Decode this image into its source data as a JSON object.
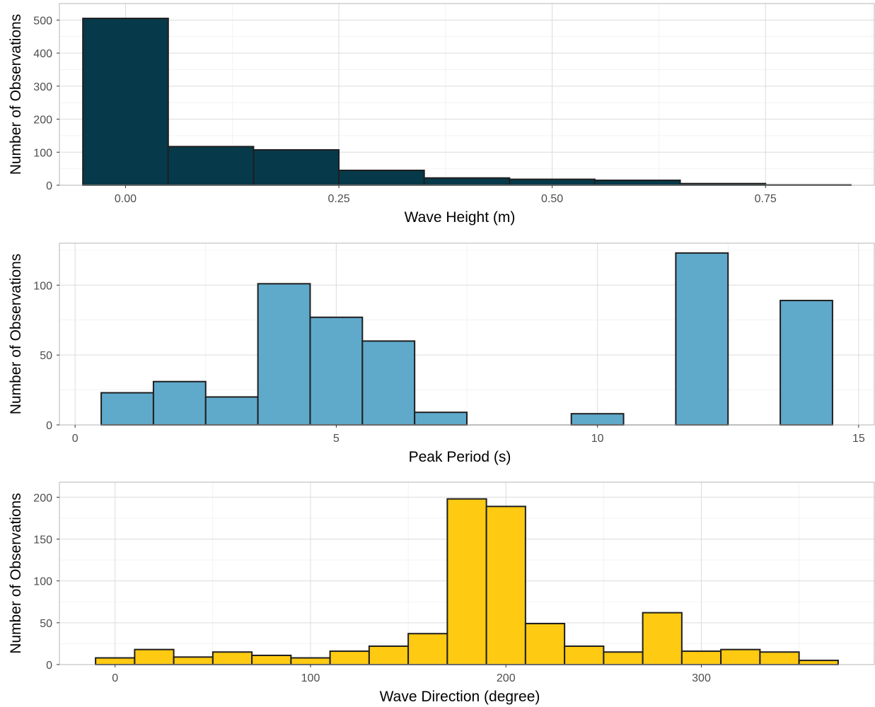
{
  "chart_data": [
    {
      "type": "bar",
      "subtype": "histogram",
      "xlabel": "Wave Height (m)",
      "ylabel": "Number of Observations",
      "xlim": [
        -0.0775,
        0.8775
      ],
      "ylim": [
        0,
        550
      ],
      "x_ticks": [
        0,
        0.25,
        0.5,
        0.75
      ],
      "x_tick_labels": [
        "0.00",
        "0.25",
        "0.50",
        "0.75"
      ],
      "y_ticks": [
        0,
        100,
        200,
        300,
        400,
        500
      ],
      "y_tick_labels": [
        "0",
        "100",
        "200",
        "300",
        "400",
        "500"
      ],
      "bin_width": 0.1,
      "bins": [
        {
          "x0": -0.05,
          "x1": 0.05,
          "value": 505
        },
        {
          "x0": 0.05,
          "x1": 0.15,
          "value": 117
        },
        {
          "x0": 0.15,
          "x1": 0.25,
          "value": 107
        },
        {
          "x0": 0.25,
          "x1": 0.35,
          "value": 45
        },
        {
          "x0": 0.35,
          "x1": 0.45,
          "value": 22
        },
        {
          "x0": 0.45,
          "x1": 0.55,
          "value": 18
        },
        {
          "x0": 0.55,
          "x1": 0.65,
          "value": 15
        },
        {
          "x0": 0.65,
          "x1": 0.75,
          "value": 5
        },
        {
          "x0": 0.75,
          "x1": 0.85,
          "value": 1
        }
      ],
      "fill": "#063A4A",
      "edge": "#1F1F1F",
      "grid": true
    },
    {
      "type": "bar",
      "subtype": "histogram",
      "xlabel": "Peak Period (s)",
      "ylabel": "Number of Observations",
      "xlim": [
        -0.3,
        15.3
      ],
      "ylim": [
        0,
        130
      ],
      "x_ticks": [
        0,
        5,
        10,
        15
      ],
      "x_tick_labels": [
        "0",
        "5",
        "10",
        "15"
      ],
      "y_ticks": [
        0,
        50,
        100
      ],
      "y_tick_labels": [
        "0",
        "50",
        "100"
      ],
      "bin_width": 1,
      "bins": [
        {
          "x0": 0.5,
          "x1": 1.5,
          "value": 23
        },
        {
          "x0": 1.5,
          "x1": 2.5,
          "value": 31
        },
        {
          "x0": 2.5,
          "x1": 3.5,
          "value": 20
        },
        {
          "x0": 3.5,
          "x1": 4.5,
          "value": 101
        },
        {
          "x0": 4.5,
          "x1": 5.5,
          "value": 77
        },
        {
          "x0": 5.5,
          "x1": 6.5,
          "value": 60
        },
        {
          "x0": 6.5,
          "x1": 7.5,
          "value": 9
        },
        {
          "x0": 7.5,
          "x1": 8.5,
          "value": 0
        },
        {
          "x0": 8.5,
          "x1": 9.5,
          "value": 0
        },
        {
          "x0": 9.5,
          "x1": 10.5,
          "value": 8
        },
        {
          "x0": 10.5,
          "x1": 11.5,
          "value": 0
        },
        {
          "x0": 11.5,
          "x1": 12.5,
          "value": 123
        },
        {
          "x0": 12.5,
          "x1": 13.5,
          "value": 0
        },
        {
          "x0": 13.5,
          "x1": 14.5,
          "value": 89
        }
      ],
      "fill": "#5FA9CB",
      "edge": "#1F1F1F",
      "grid": true
    },
    {
      "type": "bar",
      "subtype": "histogram",
      "xlabel": "Wave Direction (degree)",
      "ylabel": "Number of Observations",
      "xlim": [
        -28.5,
        388.5
      ],
      "ylim": [
        0,
        218
      ],
      "x_ticks": [
        0,
        100,
        200,
        300
      ],
      "x_tick_labels": [
        "0",
        "100",
        "200",
        "300"
      ],
      "y_ticks": [
        0,
        50,
        100,
        150,
        200
      ],
      "y_tick_labels": [
        "0",
        "50",
        "100",
        "150",
        "200"
      ],
      "bin_width": 20,
      "bins": [
        {
          "x0": -10,
          "x1": 10,
          "value": 8
        },
        {
          "x0": 10,
          "x1": 30,
          "value": 18
        },
        {
          "x0": 30,
          "x1": 50,
          "value": 9
        },
        {
          "x0": 50,
          "x1": 70,
          "value": 15
        },
        {
          "x0": 70,
          "x1": 90,
          "value": 11
        },
        {
          "x0": 90,
          "x1": 110,
          "value": 8
        },
        {
          "x0": 110,
          "x1": 130,
          "value": 16
        },
        {
          "x0": 130,
          "x1": 150,
          "value": 22
        },
        {
          "x0": 150,
          "x1": 170,
          "value": 37
        },
        {
          "x0": 170,
          "x1": 190,
          "value": 198
        },
        {
          "x0": 190,
          "x1": 210,
          "value": 189
        },
        {
          "x0": 210,
          "x1": 230,
          "value": 49
        },
        {
          "x0": 230,
          "x1": 250,
          "value": 22
        },
        {
          "x0": 250,
          "x1": 270,
          "value": 15
        },
        {
          "x0": 270,
          "x1": 290,
          "value": 62
        },
        {
          "x0": 290,
          "x1": 310,
          "value": 16
        },
        {
          "x0": 310,
          "x1": 330,
          "value": 18
        },
        {
          "x0": 330,
          "x1": 350,
          "value": 15
        },
        {
          "x0": 350,
          "x1": 370,
          "value": 5
        }
      ],
      "fill": "#FECA12",
      "edge": "#1F1F1F",
      "grid": true
    }
  ]
}
